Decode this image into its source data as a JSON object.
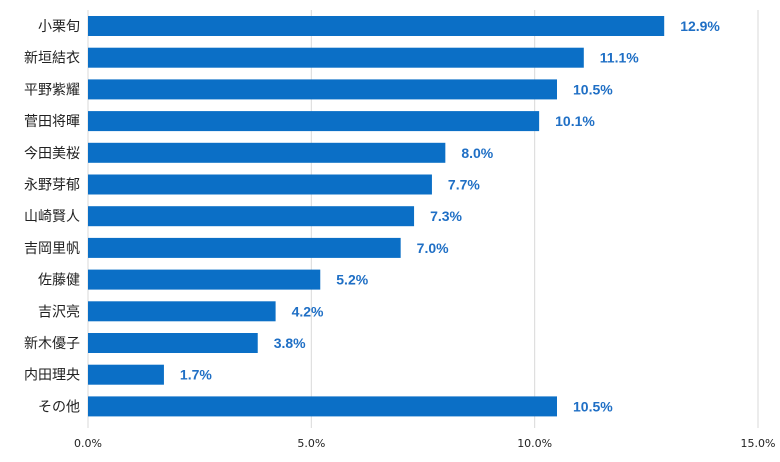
{
  "chart_data": {
    "type": "bar",
    "orientation": "horizontal",
    "categories": [
      "小栗旬",
      "新垣結衣",
      "平野紫耀",
      "菅田将暉",
      "今田美桜",
      "永野芽郁",
      "山崎賢人",
      "吉岡里帆",
      "佐藤健",
      "吉沢亮",
      "新木優子",
      "内田理央",
      "その他"
    ],
    "values": [
      12.9,
      11.1,
      10.5,
      10.1,
      8.0,
      7.7,
      7.3,
      7.0,
      5.2,
      4.2,
      3.8,
      1.7,
      10.5
    ],
    "value_labels": [
      "12.9%",
      "11.1%",
      "10.5%",
      "10.1%",
      "8.0%",
      "7.7%",
      "7.3%",
      "7.0%",
      "5.2%",
      "4.2%",
      "3.8%",
      "1.7%",
      "10.5%"
    ],
    "xlim": [
      0,
      15
    ],
    "x_ticks": [
      0,
      5,
      10,
      15
    ],
    "x_tick_labels": [
      "0.0%",
      "5.0%",
      "10.0%",
      "15.0%"
    ],
    "title": "",
    "xlabel": "",
    "ylabel": "",
    "grid": true,
    "legend": "none",
    "colors": {
      "bar": "#0b6fc6",
      "value_label": "#1f6fc5",
      "grid": "#d9d9d9",
      "axis_text": "#222222"
    }
  }
}
